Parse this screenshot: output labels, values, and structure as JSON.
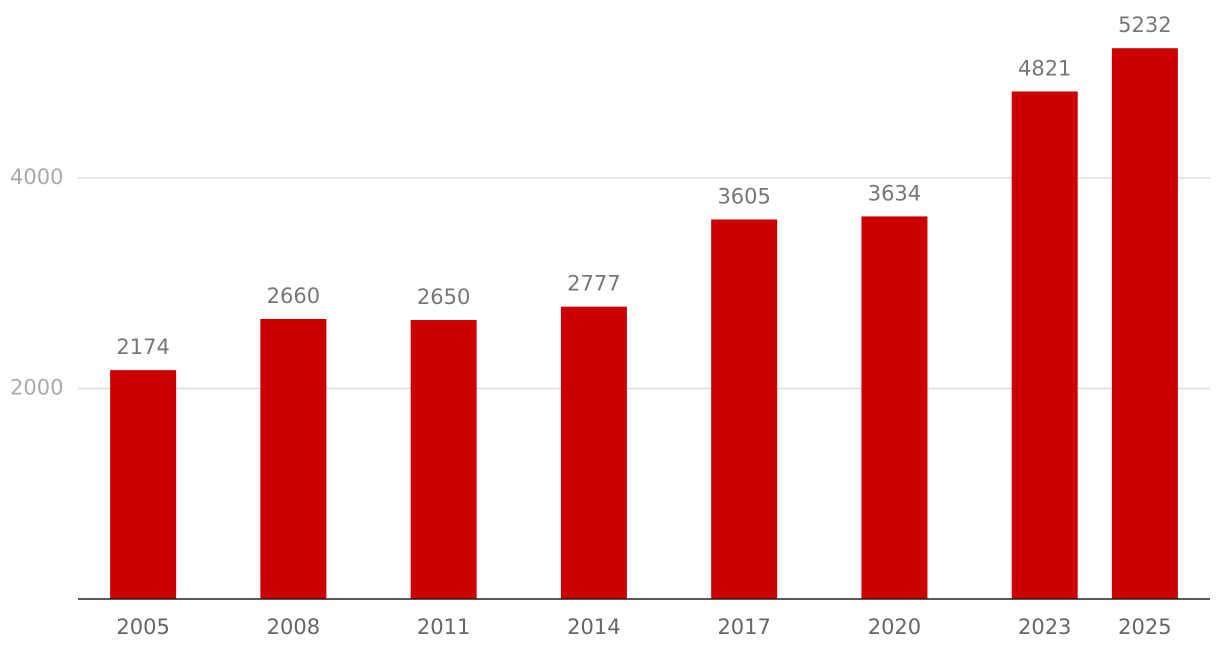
{
  "chart_data": {
    "type": "bar",
    "x": [
      2005,
      2008,
      2011,
      2014,
      2017,
      2020,
      2023,
      2025
    ],
    "values": [
      2174,
      2660,
      2650,
      2777,
      3605,
      3634,
      4821,
      5232
    ],
    "color": "#cc0000",
    "xlim": [
      2003.7,
      2026.3
    ],
    "xticks": [
      2005,
      2008,
      2011,
      2014,
      2017,
      2020,
      2023,
      2025
    ],
    "ylim": [
      0,
      5690
    ],
    "yticks": [
      2000,
      4000
    ],
    "grid": true
  }
}
